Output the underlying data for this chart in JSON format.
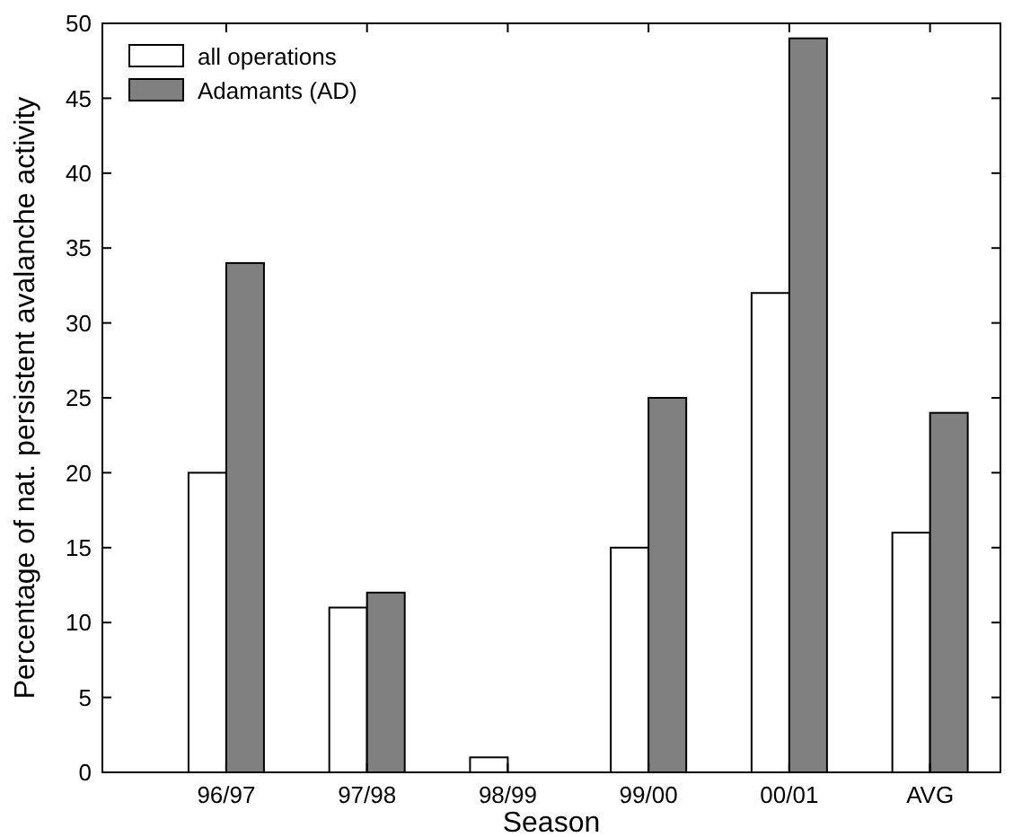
{
  "chart_data": {
    "type": "bar",
    "xlabel": "Season",
    "ylabel": "Percentage of nat. persistent avalanche activity",
    "categories": [
      "96/97",
      "97/98",
      "98/99",
      "99/00",
      "00/01",
      "AVG"
    ],
    "series": [
      {
        "name": "all operations",
        "color": "#ffffff",
        "values": [
          20,
          11,
          1,
          15,
          32,
          16
        ]
      },
      {
        "name": "Adamants (AD)",
        "color": "#808080",
        "values": [
          34,
          12,
          0,
          25,
          49,
          24
        ]
      }
    ],
    "ylim": [
      0,
      50
    ],
    "yticks": [
      0,
      5,
      10,
      15,
      20,
      25,
      30,
      35,
      40,
      45,
      50
    ],
    "legend": "top left"
  }
}
